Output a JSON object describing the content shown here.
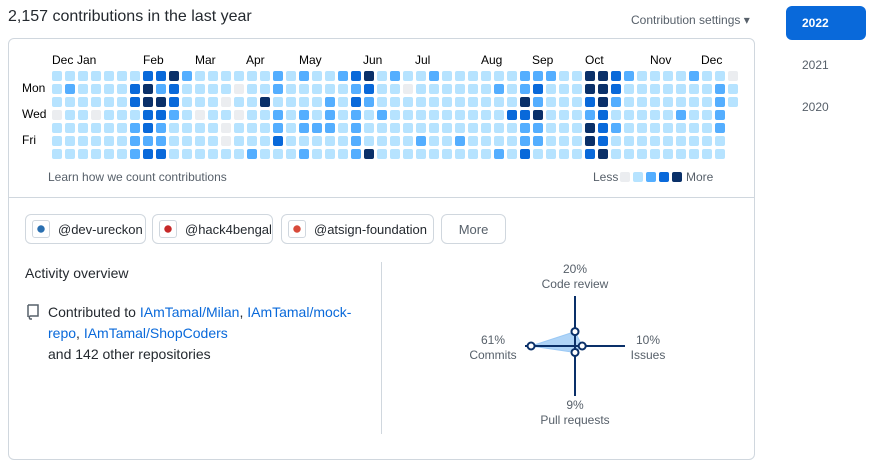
{
  "header": {
    "title": "2,157 contributions in the last year",
    "settings": "Contribution settings"
  },
  "years": [
    "2022",
    "2021",
    "2020"
  ],
  "calendar": {
    "months": [
      "Dec",
      "Jan",
      "Feb",
      "Mar",
      "Apr",
      "May",
      "Jun",
      "Jul",
      "Aug",
      "Sep",
      "Oct",
      "Nov",
      "Dec"
    ],
    "days": [
      "Mon",
      "Wed",
      "Fri"
    ],
    "colors": [
      "#ebedf0",
      "#b6e3ff",
      "#54aeff",
      "#0969da",
      "#0a3069"
    ],
    "weeks": [
      [
        1,
        1,
        1,
        0,
        1,
        1,
        1
      ],
      [
        1,
        2,
        1,
        1,
        1,
        1,
        1
      ],
      [
        1,
        1,
        1,
        1,
        1,
        1,
        1
      ],
      [
        1,
        1,
        1,
        0,
        1,
        1,
        1
      ],
      [
        1,
        1,
        1,
        1,
        1,
        1,
        1
      ],
      [
        1,
        1,
        1,
        1,
        1,
        1,
        1
      ],
      [
        1,
        3,
        3,
        1,
        2,
        2,
        2
      ],
      [
        3,
        4,
        4,
        3,
        3,
        2,
        3
      ],
      [
        3,
        2,
        4,
        3,
        2,
        2,
        3
      ],
      [
        4,
        3,
        3,
        2,
        1,
        1,
        1
      ],
      [
        2,
        1,
        1,
        1,
        1,
        1,
        1
      ],
      [
        1,
        1,
        1,
        0,
        1,
        1,
        1
      ],
      [
        1,
        1,
        1,
        1,
        1,
        1,
        1
      ],
      [
        1,
        1,
        0,
        1,
        0,
        0,
        1
      ],
      [
        1,
        0,
        1,
        0,
        1,
        1,
        1
      ],
      [
        1,
        1,
        1,
        1,
        1,
        1,
        2
      ],
      [
        1,
        1,
        4,
        1,
        1,
        1,
        1
      ],
      [
        2,
        2,
        1,
        2,
        2,
        3,
        1
      ],
      [
        1,
        1,
        1,
        1,
        1,
        1,
        1
      ],
      [
        2,
        1,
        1,
        2,
        2,
        1,
        2
      ],
      [
        1,
        1,
        1,
        1,
        2,
        1,
        1
      ],
      [
        1,
        1,
        2,
        2,
        2,
        1,
        1
      ],
      [
        2,
        1,
        1,
        1,
        1,
        1,
        1
      ],
      [
        3,
        2,
        3,
        2,
        2,
        2,
        2
      ],
      [
        4,
        3,
        2,
        1,
        1,
        1,
        4
      ],
      [
        1,
        1,
        1,
        2,
        1,
        1,
        1
      ],
      [
        2,
        1,
        1,
        1,
        1,
        1,
        1
      ],
      [
        1,
        0,
        1,
        1,
        1,
        1,
        1
      ],
      [
        1,
        1,
        1,
        1,
        1,
        2,
        1
      ],
      [
        2,
        1,
        1,
        1,
        1,
        1,
        1
      ],
      [
        1,
        1,
        1,
        1,
        1,
        1,
        1
      ],
      [
        1,
        1,
        1,
        1,
        1,
        2,
        1
      ],
      [
        1,
        1,
        1,
        1,
        1,
        1,
        1
      ],
      [
        1,
        1,
        1,
        1,
        1,
        1,
        1
      ],
      [
        1,
        2,
        1,
        1,
        1,
        1,
        2
      ],
      [
        1,
        1,
        1,
        3,
        1,
        1,
        1
      ],
      [
        2,
        2,
        4,
        3,
        2,
        2,
        3
      ],
      [
        2,
        3,
        2,
        4,
        2,
        2,
        1
      ],
      [
        2,
        1,
        1,
        1,
        1,
        1,
        1
      ],
      [
        1,
        1,
        1,
        1,
        1,
        1,
        1
      ],
      [
        1,
        1,
        1,
        1,
        1,
        1,
        1
      ],
      [
        4,
        4,
        3,
        2,
        4,
        4,
        3
      ],
      [
        4,
        4,
        4,
        3,
        3,
        3,
        4
      ],
      [
        3,
        3,
        2,
        1,
        2,
        1,
        1
      ],
      [
        2,
        1,
        1,
        1,
        1,
        1,
        1
      ],
      [
        1,
        1,
        1,
        1,
        1,
        1,
        1
      ],
      [
        1,
        1,
        1,
        1,
        1,
        1,
        1
      ],
      [
        1,
        1,
        1,
        1,
        1,
        1,
        1
      ],
      [
        1,
        1,
        1,
        2,
        1,
        1,
        1
      ],
      [
        2,
        1,
        1,
        1,
        1,
        1,
        1
      ],
      [
        1,
        1,
        1,
        1,
        1,
        1,
        1
      ],
      [
        1,
        2,
        2,
        2,
        2,
        1,
        1
      ],
      [
        0,
        1,
        1,
        null,
        null,
        null,
        null
      ]
    ],
    "footer": "Learn how we count contributions",
    "less": "Less",
    "more": "More"
  },
  "orgs": [
    "@dev-ureckon",
    "@hack4bengal",
    "@atsign-foundation"
  ],
  "orgs_more": "More",
  "activity": {
    "title": "Activity overview",
    "prefix": "Contributed to",
    "sep": ",",
    "repos": [
      "IAmTamal/Milan",
      "IAmTamal/mock-repo",
      "IAmTamal/ShopCoders"
    ],
    "suffix": "and 142 other repositories"
  },
  "chart_data": {
    "type": "radar",
    "categories": [
      "Code review",
      "Issues",
      "Pull requests",
      "Commits"
    ],
    "values": [
      20,
      10,
      9,
      61
    ],
    "value_labels": [
      "20%",
      "10%",
      "9%",
      "61%"
    ],
    "color": "#0969da",
    "fill": "#9bc9f5"
  }
}
